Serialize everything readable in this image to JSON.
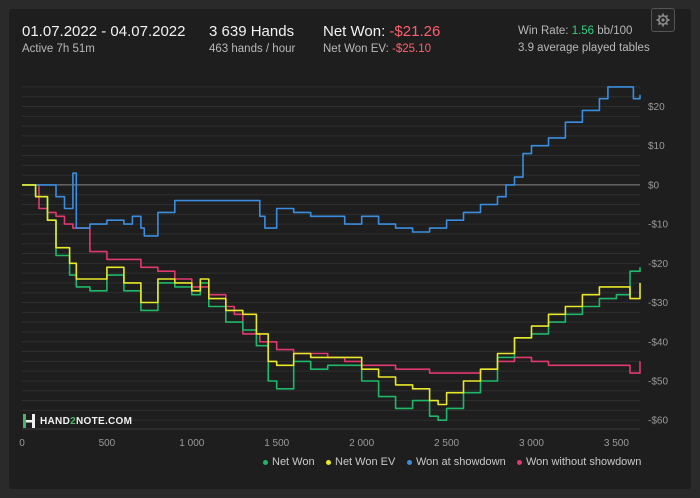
{
  "header": {
    "date_range": "01.07.2022 - 04.07.2022",
    "active": "Active 7h 51m",
    "hands": "3 639 Hands",
    "hands_per_hour": "463 hands / hour",
    "net_won_label": "Net Won: ",
    "net_won_value": "-$21.26",
    "net_won_ev_label": "Net Won  EV: ",
    "net_won_ev_value": "-$25.10",
    "win_rate_label": "Win Rate: ",
    "win_rate_value": "1.56",
    "win_rate_unit": " bb/100",
    "tables": "3.9 average played tables",
    "settings_icon": "gear-icon"
  },
  "logo": {
    "text_a": "HAND",
    "text_b": "2",
    "text_c": "NOTE.COM"
  },
  "colors": {
    "net_won": "#1fb868",
    "net_won_ev": "#e8e82a",
    "won_at_showdown": "#3b8de0",
    "won_without_showdown": "#e0396e",
    "negative": "#ff5f6d",
    "positive": "#37d07a"
  },
  "chart_data": {
    "type": "line",
    "xlabel": "",
    "ylabel": "",
    "xlim": [
      0,
      3639
    ],
    "ylim": [
      -62,
      26
    ],
    "x_ticks": [
      0,
      500,
      1000,
      1500,
      2000,
      2500,
      3000,
      3500
    ],
    "x_tick_labels": [
      "0",
      "500",
      "1 000",
      "1 500",
      "2 000",
      "2 500",
      "3 000",
      "3 500"
    ],
    "y_ticks": [
      20,
      10,
      0,
      -10,
      -20,
      -30,
      -40,
      -50,
      -60
    ],
    "y_tick_labels": [
      "$20",
      "$10",
      "$0",
      "-$10",
      "-$20",
      "-$30",
      "-$40",
      "-$50",
      "-$60"
    ],
    "grid": true,
    "legend_position": "bottom-right",
    "series": [
      {
        "name": "Net Won",
        "key": "net_won",
        "x": [
          0,
          80,
          150,
          200,
          280,
          320,
          400,
          500,
          600,
          700,
          800,
          900,
          1000,
          1050,
          1100,
          1200,
          1300,
          1380,
          1450,
          1500,
          1600,
          1700,
          1800,
          1900,
          2000,
          2100,
          2200,
          2300,
          2400,
          2450,
          2500,
          2600,
          2700,
          2800,
          2900,
          3000,
          3100,
          3200,
          3300,
          3400,
          3500,
          3580,
          3639
        ],
        "y": [
          0,
          -3,
          -9,
          -18,
          -23,
          -26,
          -27,
          -23,
          -27,
          -32,
          -25,
          -26,
          -28,
          -25,
          -31,
          -35,
          -37,
          -41,
          -50,
          -52,
          -45,
          -47,
          -46,
          -46,
          -50,
          -54,
          -57,
          -55,
          -59,
          -60,
          -57,
          -53,
          -50,
          -44,
          -39,
          -38,
          -35,
          -33,
          -31,
          -29,
          -28,
          -22,
          -21
        ]
      },
      {
        "name": "Net Won  EV",
        "key": "net_won_ev",
        "x": [
          0,
          80,
          150,
          200,
          280,
          320,
          400,
          500,
          600,
          700,
          800,
          900,
          1000,
          1050,
          1100,
          1200,
          1300,
          1380,
          1450,
          1500,
          1600,
          1700,
          1800,
          1900,
          2000,
          2100,
          2200,
          2300,
          2400,
          2450,
          2500,
          2600,
          2700,
          2800,
          2900,
          3000,
          3100,
          3200,
          3300,
          3400,
          3500,
          3580,
          3639
        ],
        "y": [
          0,
          -3,
          -9,
          -16,
          -20,
          -24,
          -24,
          -21,
          -25,
          -30,
          -24,
          -25,
          -27,
          -24,
          -29,
          -32,
          -33,
          -38,
          -45,
          -46,
          -43,
          -44,
          -44,
          -44,
          -47,
          -49,
          -51,
          -52,
          -55,
          -56,
          -53,
          -50,
          -47,
          -43,
          -39,
          -36,
          -33,
          -31,
          -28,
          -26,
          -26,
          -29,
          -25
        ]
      },
      {
        "name": "Won at showdown",
        "key": "won_at_showdown",
        "x": [
          0,
          100,
          150,
          200,
          250,
          290,
          300,
          320,
          400,
          500,
          600,
          650,
          700,
          720,
          800,
          900,
          1000,
          1100,
          1200,
          1300,
          1400,
          1430,
          1500,
          1600,
          1700,
          1800,
          1900,
          2000,
          2100,
          2200,
          2300,
          2350,
          2400,
          2500,
          2600,
          2700,
          2800,
          2850,
          2900,
          2950,
          3000,
          3100,
          3200,
          3300,
          3400,
          3450,
          3500,
          3600,
          3639
        ],
        "y": [
          0,
          0,
          0,
          -3,
          -6,
          -6,
          3,
          -11,
          -10,
          -9,
          -10,
          -8,
          -11,
          -13,
          -7,
          -4,
          -4,
          -4,
          -4,
          -4,
          -8,
          -11,
          -6,
          -7,
          -8,
          -8,
          -10,
          -8,
          -10,
          -11,
          -12,
          -12,
          -11,
          -9,
          -7,
          -5,
          -3,
          0,
          2,
          8,
          10,
          12,
          16,
          19,
          22,
          25,
          25,
          22,
          23
        ]
      },
      {
        "name": "Won without showdown",
        "key": "won_without_showdown",
        "x": [
          0,
          100,
          150,
          200,
          250,
          300,
          400,
          500,
          600,
          700,
          800,
          900,
          1000,
          1100,
          1200,
          1250,
          1300,
          1400,
          1500,
          1600,
          1700,
          1800,
          1900,
          2000,
          2100,
          2200,
          2300,
          2400,
          2500,
          2600,
          2700,
          2800,
          2900,
          3000,
          3100,
          3200,
          3300,
          3400,
          3500,
          3580,
          3639
        ],
        "y": [
          0,
          -6,
          -7,
          -8,
          -10,
          -11,
          -17,
          -19,
          -19,
          -21,
          -22,
          -24,
          -26,
          -28,
          -31,
          -33,
          -38,
          -40,
          -42,
          -43,
          -43,
          -44,
          -45,
          -46,
          -46,
          -47,
          -47,
          -48,
          -48,
          -48,
          -47,
          -45,
          -44,
          -45,
          -46,
          -46,
          -46,
          -46,
          -46,
          -48,
          -45
        ]
      }
    ]
  },
  "legend": [
    {
      "label": "Net Won",
      "key": "net_won"
    },
    {
      "label": "Net Won  EV",
      "key": "net_won_ev"
    },
    {
      "label": "Won at showdown",
      "key": "won_at_showdown"
    },
    {
      "label": "Won without showdown",
      "key": "won_without_showdown"
    }
  ]
}
